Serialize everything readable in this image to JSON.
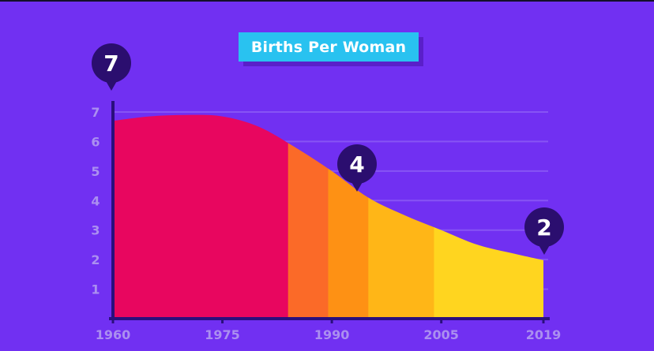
{
  "colors": {
    "background": "#7130f2",
    "grid": "#8f60f5",
    "axis": "#2a0f7d",
    "tick_text": "#ab8ff0",
    "pin": "#2b0e6f",
    "title_bg": "#29c2f0",
    "bands": [
      "#e8065f",
      "#fb6a28",
      "#fe9114",
      "#ffb617",
      "#ffd51f"
    ]
  },
  "chart_data": {
    "type": "area",
    "title": "Births Per Woman",
    "xlabel": "",
    "ylabel": "",
    "x_ticks": [
      "1960",
      "1975",
      "1990",
      "2005",
      "2019"
    ],
    "y_ticks": [
      "1",
      "2",
      "3",
      "4",
      "5",
      "6",
      "7"
    ],
    "xlim": [
      1960,
      2019
    ],
    "ylim": [
      0,
      7
    ],
    "grid": true,
    "x": [
      1960,
      1965,
      1970,
      1975,
      1980,
      1985,
      1990,
      1995,
      2000,
      2005,
      2010,
      2015,
      2019
    ],
    "y": [
      6.7,
      6.85,
      6.9,
      6.85,
      6.5,
      5.8,
      5.0,
      4.1,
      3.5,
      3.0,
      2.5,
      2.2,
      1.98
    ],
    "bands": [
      {
        "from": 1960,
        "to": 1984,
        "color": "#e8065f"
      },
      {
        "from": 1984,
        "to": 1989.5,
        "color": "#fb6a28"
      },
      {
        "from": 1989.5,
        "to": 1995,
        "color": "#fe9114"
      },
      {
        "from": 1995,
        "to": 2004,
        "color": "#ffb617"
      },
      {
        "from": 2004,
        "to": 2019,
        "color": "#ffd51f"
      }
    ],
    "annotations": [
      {
        "label": "7",
        "x": 1960,
        "y": 7
      },
      {
        "label": "4",
        "x": 1994,
        "y": 4
      },
      {
        "label": "2",
        "x": 2019,
        "y": 2
      }
    ]
  }
}
